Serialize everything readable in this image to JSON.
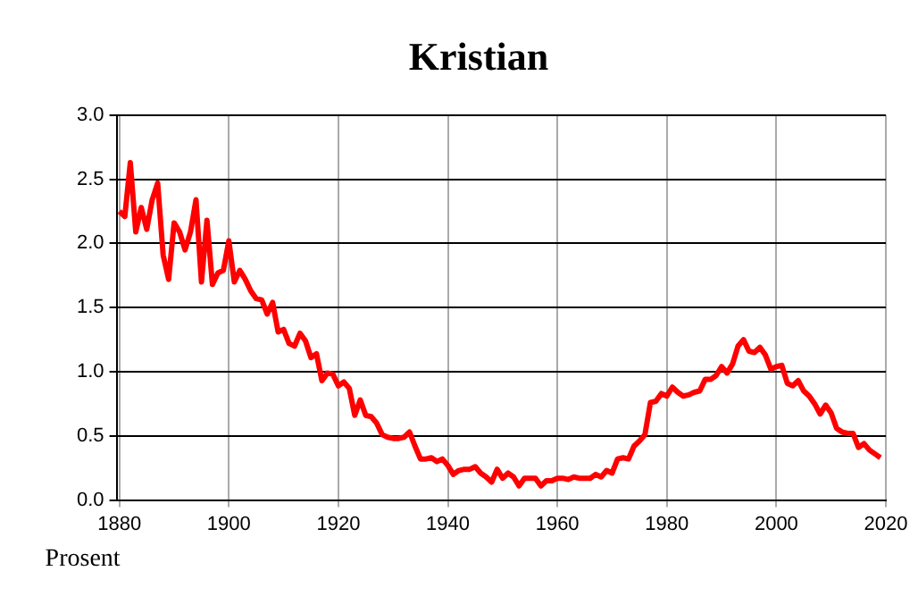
{
  "chart_data": {
    "type": "line",
    "title": "Kristian",
    "ylabel": "Prosent",
    "x": [
      1880,
      1881,
      1882,
      1883,
      1884,
      1885,
      1886,
      1887,
      1888,
      1889,
      1890,
      1891,
      1892,
      1893,
      1894,
      1895,
      1896,
      1897,
      1898,
      1899,
      1900,
      1901,
      1902,
      1903,
      1904,
      1905,
      1906,
      1907,
      1908,
      1909,
      1910,
      1911,
      1912,
      1913,
      1914,
      1915,
      1916,
      1917,
      1918,
      1919,
      1920,
      1921,
      1922,
      1923,
      1924,
      1925,
      1926,
      1927,
      1928,
      1929,
      1930,
      1931,
      1932,
      1933,
      1934,
      1935,
      1936,
      1937,
      1938,
      1939,
      1940,
      1941,
      1942,
      1943,
      1944,
      1945,
      1946,
      1947,
      1948,
      1949,
      1950,
      1951,
      1952,
      1953,
      1954,
      1955,
      1956,
      1957,
      1958,
      1959,
      1960,
      1961,
      1962,
      1963,
      1964,
      1965,
      1966,
      1967,
      1968,
      1969,
      1970,
      1971,
      1972,
      1973,
      1974,
      1975,
      1976,
      1977,
      1978,
      1979,
      1980,
      1981,
      1982,
      1983,
      1984,
      1985,
      1986,
      1987,
      1988,
      1989,
      1990,
      1991,
      1992,
      1993,
      1994,
      1995,
      1996,
      1997,
      1998,
      1999,
      2000,
      2001,
      2002,
      2003,
      2004,
      2005,
      2006,
      2007,
      2008,
      2009,
      2010,
      2011,
      2012,
      2013,
      2014,
      2015,
      2016,
      2017,
      2018,
      2019
    ],
    "series": [
      {
        "color": "#ff0000",
        "values": [
          2.25,
          2.21,
          2.63,
          2.09,
          2.28,
          2.11,
          2.34,
          2.47,
          1.91,
          1.72,
          2.16,
          2.09,
          1.95,
          2.09,
          2.34,
          1.7,
          2.18,
          1.68,
          1.77,
          1.79,
          2.02,
          1.7,
          1.79,
          1.72,
          1.63,
          1.57,
          1.56,
          1.45,
          1.54,
          1.31,
          1.33,
          1.22,
          1.2,
          1.3,
          1.24,
          1.11,
          1.14,
          0.93,
          0.99,
          0.98,
          0.89,
          0.92,
          0.87,
          0.66,
          0.78,
          0.66,
          0.65,
          0.6,
          0.51,
          0.49,
          0.48,
          0.48,
          0.49,
          0.53,
          0.42,
          0.32,
          0.32,
          0.33,
          0.3,
          0.32,
          0.27,
          0.2,
          0.23,
          0.24,
          0.24,
          0.26,
          0.21,
          0.18,
          0.14,
          0.24,
          0.17,
          0.21,
          0.18,
          0.11,
          0.17,
          0.17,
          0.17,
          0.11,
          0.15,
          0.15,
          0.17,
          0.17,
          0.16,
          0.18,
          0.17,
          0.17,
          0.17,
          0.2,
          0.18,
          0.23,
          0.21,
          0.32,
          0.33,
          0.32,
          0.42,
          0.46,
          0.51,
          0.76,
          0.77,
          0.83,
          0.81,
          0.88,
          0.84,
          0.81,
          0.82,
          0.84,
          0.85,
          0.94,
          0.94,
          0.97,
          1.04,
          0.99,
          1.06,
          1.2,
          1.25,
          1.16,
          1.15,
          1.19,
          1.13,
          1.02,
          1.04,
          1.05,
          0.91,
          0.89,
          0.93,
          0.85,
          0.81,
          0.75,
          0.67,
          0.74,
          0.68,
          0.56,
          0.53,
          0.52,
          0.52,
          0.41,
          0.44,
          0.39,
          0.36,
          0.33
        ]
      }
    ],
    "xlim": [
      1879.5,
      2020
    ],
    "xticks": [
      1880,
      1900,
      1920,
      1940,
      1960,
      1980,
      2000,
      2020
    ],
    "ylim": [
      0,
      3
    ],
    "yticks": [
      {
        "value": 0,
        "label": "0.0"
      },
      {
        "value": 0.5,
        "label": "0.5"
      },
      {
        "value": 1,
        "label": "1.0"
      },
      {
        "value": 1.5,
        "label": "1.5"
      },
      {
        "value": 2,
        "label": "2.0"
      },
      {
        "value": 2.5,
        "label": "2.5"
      },
      {
        "value": 3,
        "label": "3.0"
      }
    ],
    "grid": true,
    "legend": false,
    "marker": "none",
    "line_style": "solid"
  }
}
